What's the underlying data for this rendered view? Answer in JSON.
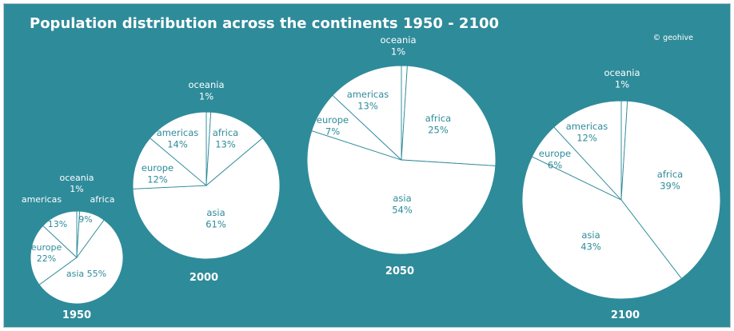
{
  "chart": {
    "title": "Population distribution across the continents 1950 - 2100",
    "credit": "© geohive",
    "background_color": "#2e8b9a",
    "pie_color": "#ffffff",
    "line_color": "#2e8b9a",
    "label_color": "#2e8b9a"
  },
  "chart_data": [
    {
      "type": "pie",
      "title": "1950",
      "slices": [
        {
          "name": "oceania",
          "value": 1
        },
        {
          "name": "africa",
          "value": 9
        },
        {
          "name": "asia",
          "value": 55
        },
        {
          "name": "europe",
          "value": 22
        },
        {
          "name": "americas",
          "value": 13
        }
      ]
    },
    {
      "type": "pie",
      "title": "2000",
      "slices": [
        {
          "name": "oceania",
          "value": 1
        },
        {
          "name": "africa",
          "value": 13
        },
        {
          "name": "asia",
          "value": 61
        },
        {
          "name": "europe",
          "value": 12
        },
        {
          "name": "americas",
          "value": 14
        }
      ]
    },
    {
      "type": "pie",
      "title": "2050",
      "slices": [
        {
          "name": "oceania",
          "value": 1
        },
        {
          "name": "africa",
          "value": 25
        },
        {
          "name": "asia",
          "value": 54
        },
        {
          "name": "europe",
          "value": 7
        },
        {
          "name": "americas",
          "value": 13
        }
      ]
    },
    {
      "type": "pie",
      "title": "2100",
      "slices": [
        {
          "name": "oceania",
          "value": 1
        },
        {
          "name": "africa",
          "value": 39
        },
        {
          "name": "asia",
          "value": 43
        },
        {
          "name": "europe",
          "value": 6
        },
        {
          "name": "americas",
          "value": 12
        }
      ]
    }
  ]
}
